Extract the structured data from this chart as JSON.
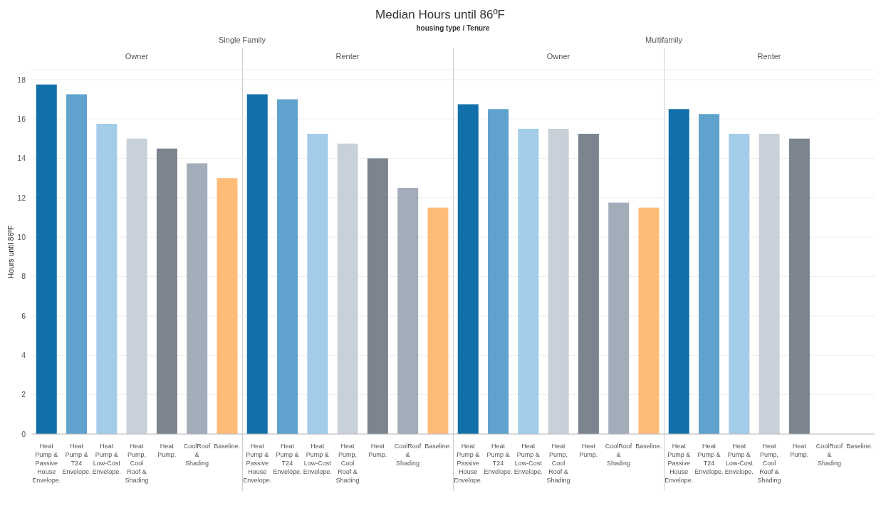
{
  "chart_data": [
    {
      "type": "bar",
      "annotations": [
        "housing type / Tenure",
        "Single Family"
      ],
      "subtitle": "Owner",
      "ylabel": "Hours until 86ºF",
      "categories": [
        "Heat Pump & Passive House Envelope.",
        "Heat Pump & T24 Envelope.",
        "Heat Pump & Low-Cost Envelope.",
        "Heat Pump, Cool Roof & Shading",
        "Heat Pump.",
        "CoolRoof & Shading",
        "Baseline."
      ],
      "values": [
        17.75,
        17.25,
        15.75,
        15.0,
        14.5,
        13.75,
        13.0
      ],
      "colors": [
        "#1170aa",
        "#5fa2ce",
        "#a3cce9",
        "#c8d0d9",
        "#7b848f",
        "#a3acb9",
        "#ffbc79"
      ],
      "ylim": [
        0,
        18.5
      ],
      "yticks": [
        0,
        2,
        4,
        6,
        8,
        10,
        12,
        14,
        16,
        18
      ],
      "grid": "y"
    },
    {
      "type": "bar",
      "title": "Median Hours until 86ºF",
      "subtitle": "Renter",
      "categories": [
        "Heat Pump & Passive House Envelope.",
        "Heat Pump & T24 Envelope.",
        "Heat Pump & Low-Cost Envelope.",
        "Heat Pump, Cool Roof & Shading",
        "Heat Pump.",
        "CoolRoof & Shading",
        "Baseline."
      ],
      "values": [
        17.25,
        17.0,
        15.25,
        14.75,
        14.0,
        12.5,
        11.5
      ],
      "colors": [
        "#1170aa",
        "#5fa2ce",
        "#a3cce9",
        "#c8d0d9",
        "#7b848f",
        "#a3acb9",
        "#ffbc79"
      ],
      "ylim": [
        0,
        18.5
      ],
      "yticks": [
        0,
        2,
        4,
        6,
        8,
        10,
        12,
        14,
        16,
        18
      ],
      "grid": "y",
      "tick_labels": "x"
    },
    {
      "type": "bar",
      "annotations": [
        "Multifamily"
      ],
      "subtitle": "Owner",
      "categories": [
        "Heat Pump & Passive House Envelope.",
        "Heat Pump & T24 Envelope.",
        "Heat Pump & Low-Cost Envelope.",
        "Heat Pump, Cool Roof & Shading",
        "Heat Pump.",
        "CoolRoof & Shading",
        "Baseline."
      ],
      "values": [
        16.75,
        16.5,
        15.5,
        15.5,
        15.25,
        11.75,
        11.5
      ],
      "colors": [
        "#1170aa",
        "#5fa2ce",
        "#a3cce9",
        "#c8d0d9",
        "#7b848f",
        "#a3acb9",
        "#ffbc79"
      ],
      "ylim": [
        0,
        18.5
      ],
      "yticks": [
        0,
        2,
        4,
        6,
        8,
        10,
        12,
        14,
        16,
        18
      ],
      "grid": "y",
      "tick_labels": "x"
    },
    {
      "type": "bar",
      "subtitle": "Renter",
      "categories": [
        "Heat Pump & Passive House Envelope.",
        "Heat Pump & T24 Envelope.",
        "Heat Pump & Low-Cost Envelope.",
        "Heat Pump, Cool Roof & Shading",
        "Heat Pump.",
        "CoolRoof & Shading",
        "Baseline."
      ],
      "values": [
        16.5,
        16.25,
        15.25,
        15.25,
        15.0,
        null,
        null
      ],
      "colors": [
        "#1170aa",
        "#5fa2ce",
        "#a3cce9",
        "#c8d0d9",
        "#7b848f",
        "#a3acb9",
        "#ffbc79"
      ],
      "ylim": [
        0,
        18.5
      ],
      "yticks": [
        0,
        2,
        4,
        6,
        8,
        10,
        12,
        14,
        16,
        18
      ],
      "grid": "y",
      "tick_labels": "x"
    }
  ]
}
